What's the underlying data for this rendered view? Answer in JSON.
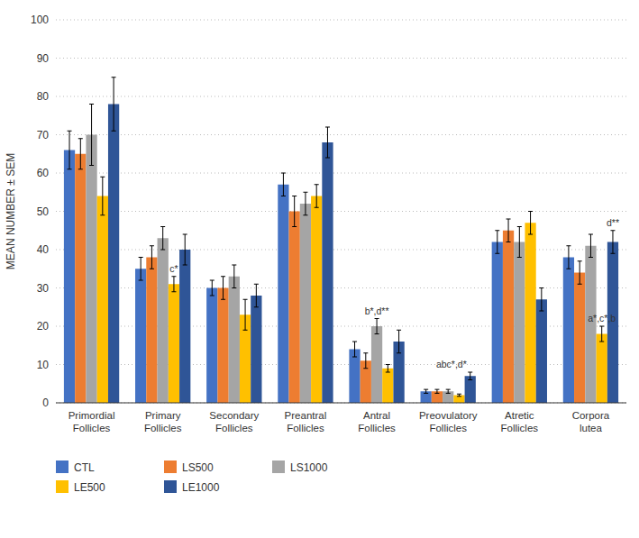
{
  "chart_data": {
    "type": "bar",
    "categories": [
      "Primordial\nFollicles",
      "Primary\nFollicles",
      "Secondary\nFollicles",
      "Preantral\nFollicles",
      "Antral\nFollicles",
      "Preovulatory\nFollicles",
      "Atretic\nFollicles",
      "Corpora\nlutea"
    ],
    "series": [
      {
        "name": "CTL",
        "color": "#4472C4",
        "values": [
          66,
          35,
          30,
          57,
          14,
          3,
          42,
          38
        ],
        "errors": [
          5,
          3,
          2,
          3,
          2,
          0.5,
          3,
          3
        ]
      },
      {
        "name": "LS500",
        "color": "#ED7D31",
        "values": [
          65,
          38,
          30,
          50,
          11,
          3,
          45,
          34
        ],
        "errors": [
          4,
          3,
          3,
          4,
          2,
          0.5,
          3,
          3
        ]
      },
      {
        "name": "LS1000",
        "color": "#A5A5A5",
        "values": [
          70,
          43,
          33,
          52,
          20,
          3,
          42,
          41
        ],
        "errors": [
          8,
          3,
          3,
          3,
          2,
          0.5,
          4,
          3
        ]
      },
      {
        "name": "LE500",
        "color": "#FFC000",
        "values": [
          54,
          31,
          23,
          54,
          9,
          2,
          47,
          18
        ],
        "errors": [
          5,
          2,
          4,
          3,
          1,
          0.3,
          3,
          2
        ]
      },
      {
        "name": "LE1000",
        "color": "#2F5597",
        "values": [
          78,
          40,
          28,
          68,
          16,
          7,
          27,
          42
        ],
        "errors": [
          7,
          4,
          3,
          4,
          3,
          1,
          3,
          3
        ]
      }
    ],
    "ylabel": "MEAN NUMBER ± SEM",
    "ylim": [
      0,
      100
    ],
    "yticks": [
      0,
      10,
      20,
      30,
      40,
      50,
      60,
      70,
      80,
      90,
      100
    ],
    "grid": true,
    "legend": "bottom",
    "annotations": [
      {
        "text": "c*",
        "category": "Primary\nFollicles",
        "series": "LE500"
      },
      {
        "text": "b*,d**",
        "category": "Antral\nFollicles",
        "series": "LS1000"
      },
      {
        "text": "abc*,d*",
        "category": "Preovulatory\nFollicles",
        "series": "LE1000"
      },
      {
        "text": "a*,c*,b",
        "category": "Corpora\nlutea",
        "series": "LE500"
      },
      {
        "text": "d**",
        "category": "Corpora\nlutea",
        "series": "LE1000"
      }
    ]
  }
}
